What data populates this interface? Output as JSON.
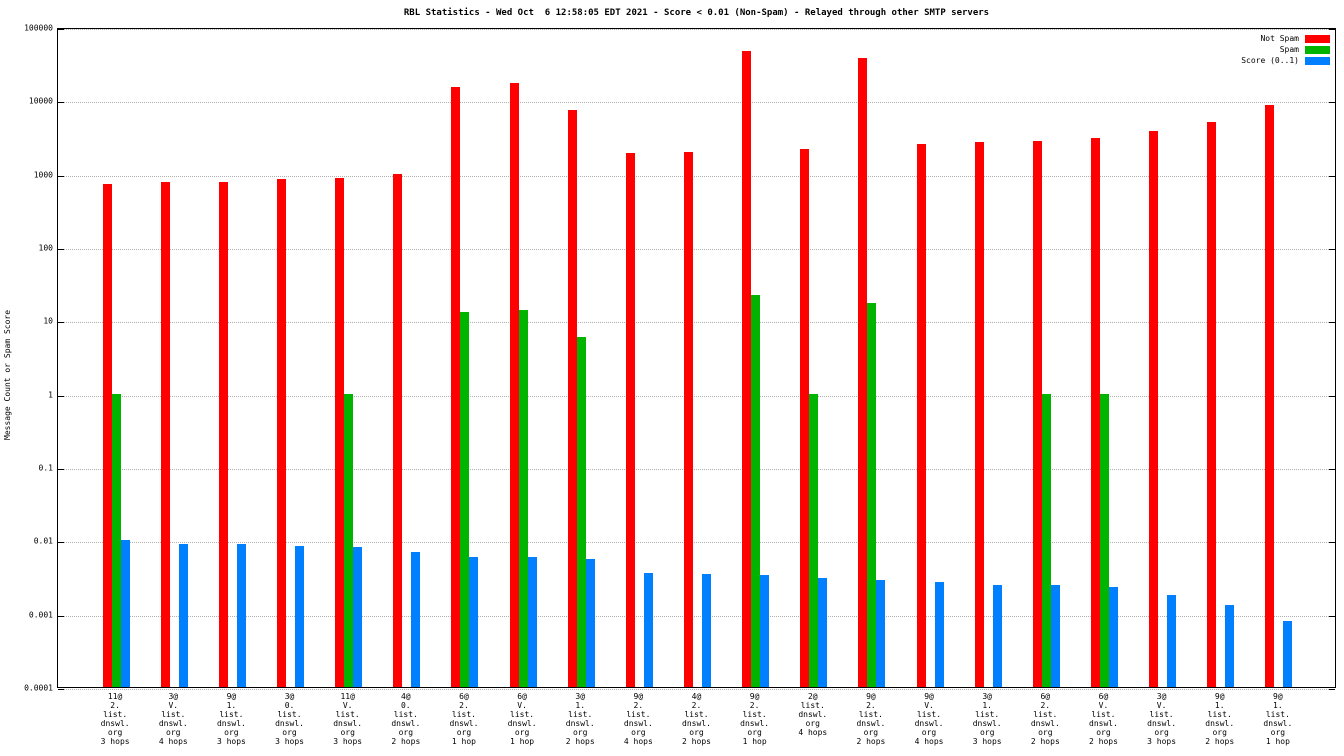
{
  "chart_data": {
    "type": "bar",
    "title": "RBL Statistics - Wed Oct  6 12:58:05 EDT 2021 - Score < 0.01 (Non-Spam) - Relayed through other SMTP servers",
    "ylabel": "Message Count or Spam Score",
    "xlabel": "",
    "y_scale": "log",
    "ylim": [
      0.0001,
      100000
    ],
    "ytick_labels": [
      "100000",
      "10000",
      "1000",
      "100",
      "10",
      "1",
      "0.1",
      "0.01",
      "0.001",
      "0.0001"
    ],
    "grid": true,
    "legend_position": "top-right",
    "categories": [
      "11@\n2.\nlist.\ndnswl.\norg\n3 hops",
      "3@\nV.\nlist.\ndnswl.\norg\n4 hops",
      "9@\n1.\nlist.\ndnswl.\norg\n3 hops",
      "3@\n0.\nlist.\ndnswl.\norg\n3 hops",
      "11@\nV.\nlist.\ndnswl.\norg\n3 hops",
      "4@\n0.\nlist.\ndnswl.\norg\n2 hops",
      "6@\n2.\nlist.\ndnswl.\norg\n1 hop",
      "6@\nV.\nlist.\ndnswl.\norg\n1 hop",
      "3@\n1.\nlist.\ndnswl.\norg\n2 hops",
      "9@\n2.\nlist.\ndnswl.\norg\n4 hops",
      "4@\n2.\nlist.\ndnswl.\norg\n2 hops",
      "9@\n2.\nlist.\ndnswl.\norg\n1 hop",
      "2@\nlist.\ndnswl.\norg\n4 hops",
      "9@\n2.\nlist.\ndnswl.\norg\n2 hops",
      "9@\nV.\nlist.\ndnswl.\norg\n4 hops",
      "3@\n1.\nlist.\ndnswl.\norg\n3 hops",
      "6@\n2.\nlist.\ndnswl.\norg\n2 hops",
      "6@\nV.\nlist.\ndnswl.\norg\n2 hops",
      "3@\nV.\nlist.\ndnswl.\norg\n3 hops",
      "9@\n1.\nlist.\ndnswl.\norg\n2 hops",
      "9@\n1.\nlist.\ndnswl.\norg\n1 hop"
    ],
    "series": [
      {
        "name": "Not Spam",
        "color": "#ff0000",
        "values": [
          720,
          780,
          780,
          850,
          860,
          1000,
          15000,
          17000,
          7500,
          1900,
          1950,
          47000,
          2200,
          38000,
          2500,
          2700,
          2800,
          3100,
          3800,
          5000,
          8700
        ]
      },
      {
        "name": "Spam",
        "color": "#00b400",
        "values": [
          1,
          0,
          0,
          0,
          1,
          0,
          13,
          14,
          6,
          0,
          0,
          22,
          1,
          17,
          0,
          0,
          1,
          1,
          0,
          0,
          0
        ]
      },
      {
        "name": "Score (0..1)",
        "color": "#0080ff",
        "values": [
          0.01,
          0.009,
          0.009,
          0.0085,
          0.008,
          0.007,
          0.006,
          0.006,
          0.0055,
          0.0036,
          0.0035,
          0.0034,
          0.0031,
          0.0029,
          0.0027,
          0.0025,
          0.0025,
          0.0023,
          0.0018,
          0.0013,
          0.0008
        ]
      }
    ]
  }
}
